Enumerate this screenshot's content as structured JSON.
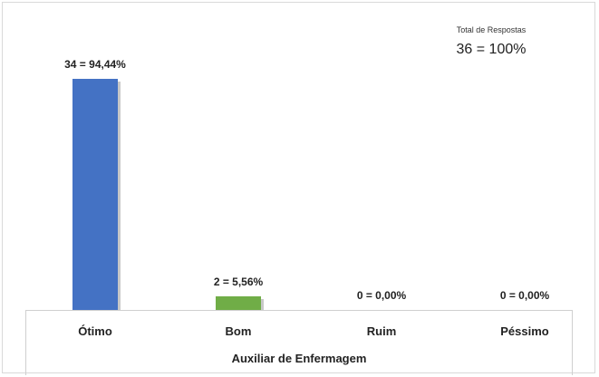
{
  "chart_data": {
    "type": "bar",
    "categories": [
      "Ótimo",
      "Bom",
      "Ruim",
      "Péssimo"
    ],
    "values": [
      94.44,
      5.56,
      0.0,
      0.0
    ],
    "counts": [
      34,
      2,
      0,
      0
    ],
    "data_labels": [
      "34 = 94,44%",
      "2 = 5,56%",
      "0 = 0,00%",
      "0 = 0,00%"
    ],
    "colors": [
      "#4472c4",
      "#70ad47",
      "#a5a5a5",
      "#ffc000"
    ],
    "xlabel": "Auxiliar de Enfermagem",
    "ylim": [
      0,
      100
    ],
    "grid": false,
    "total": {
      "label": "Total de Respostas",
      "value": "36 = 100%"
    }
  }
}
